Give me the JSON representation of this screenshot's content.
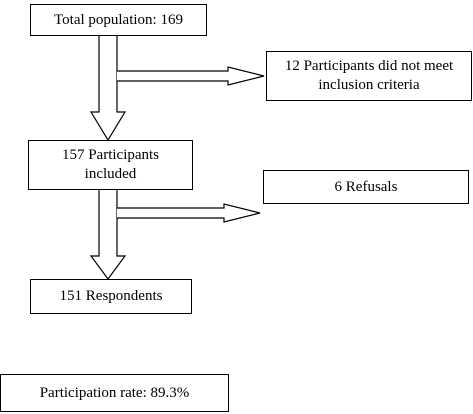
{
  "nodes": {
    "total_population": "Total population: 169",
    "excluded": "12 Participants did not meet\ninclusion criteria",
    "included": "157 Participants\nincluded",
    "refusals": "6 Refusals",
    "respondents": "151 Respondents",
    "participation_rate": "Participation rate: 89.3%"
  },
  "colors": {
    "stroke": "#000000",
    "fill": "#ffffff"
  }
}
